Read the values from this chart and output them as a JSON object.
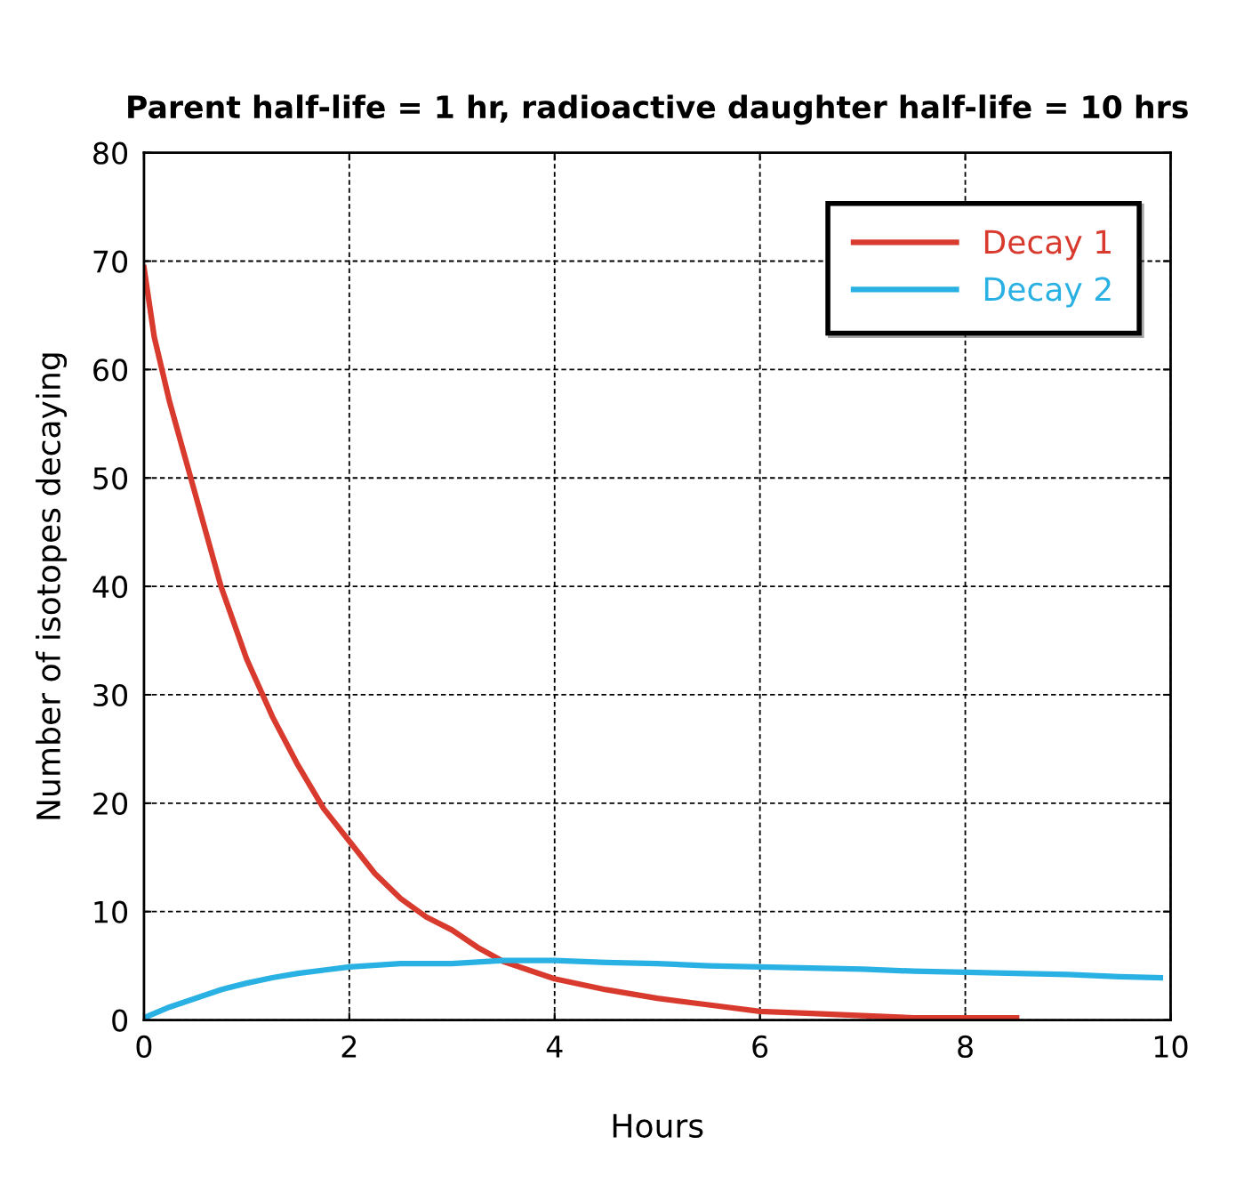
{
  "chart_data": {
    "type": "line",
    "title": "Parent half-life = 1 hr, radioactive daughter half-life = 10 hrs",
    "xlabel": "Hours",
    "ylabel": "Number of isotopes decaying",
    "xlim": [
      0,
      10
    ],
    "ylim": [
      0,
      80
    ],
    "xticks": [
      0,
      2,
      4,
      6,
      8,
      10
    ],
    "yticks": [
      0,
      10,
      20,
      30,
      40,
      50,
      60,
      70,
      80
    ],
    "grid": true,
    "legend": "top right",
    "line_style": "solid",
    "marker": "none",
    "series": [
      {
        "name": "Decay 1",
        "color": "#d93a2e",
        "x": [
          0,
          0.1,
          0.25,
          0.5,
          0.75,
          1,
          1.25,
          1.5,
          1.75,
          2,
          2.25,
          2.5,
          2.75,
          3,
          3.25,
          3.5,
          3.75,
          4,
          4.5,
          5,
          5.5,
          6,
          6.5,
          7,
          7.5,
          8,
          8.5
        ],
        "values": [
          69.4,
          63,
          57,
          48.5,
          40,
          33.3,
          28,
          23.5,
          19.5,
          16.5,
          13.5,
          11.2,
          9.5,
          8.3,
          6.7,
          5.4,
          4.6,
          3.8,
          2.8,
          2.0,
          1.4,
          0.8,
          0.6,
          0.4,
          0.2,
          0.2,
          0.2
        ]
      },
      {
        "name": "Decay 2",
        "color": "#29b1e3",
        "x": [
          0,
          0.25,
          0.5,
          0.75,
          1,
          1.25,
          1.5,
          1.75,
          2,
          2.5,
          3,
          3.5,
          4,
          4.5,
          5,
          5.5,
          6,
          6.5,
          7,
          7.5,
          8,
          8.5,
          9,
          9.5,
          9.9
        ],
        "values": [
          0.2,
          1.2,
          2.0,
          2.8,
          3.4,
          3.9,
          4.3,
          4.6,
          4.9,
          5.2,
          5.2,
          5.5,
          5.5,
          5.3,
          5.2,
          5.0,
          4.9,
          4.8,
          4.7,
          4.5,
          4.4,
          4.3,
          4.2,
          4.0,
          3.9
        ]
      }
    ]
  }
}
